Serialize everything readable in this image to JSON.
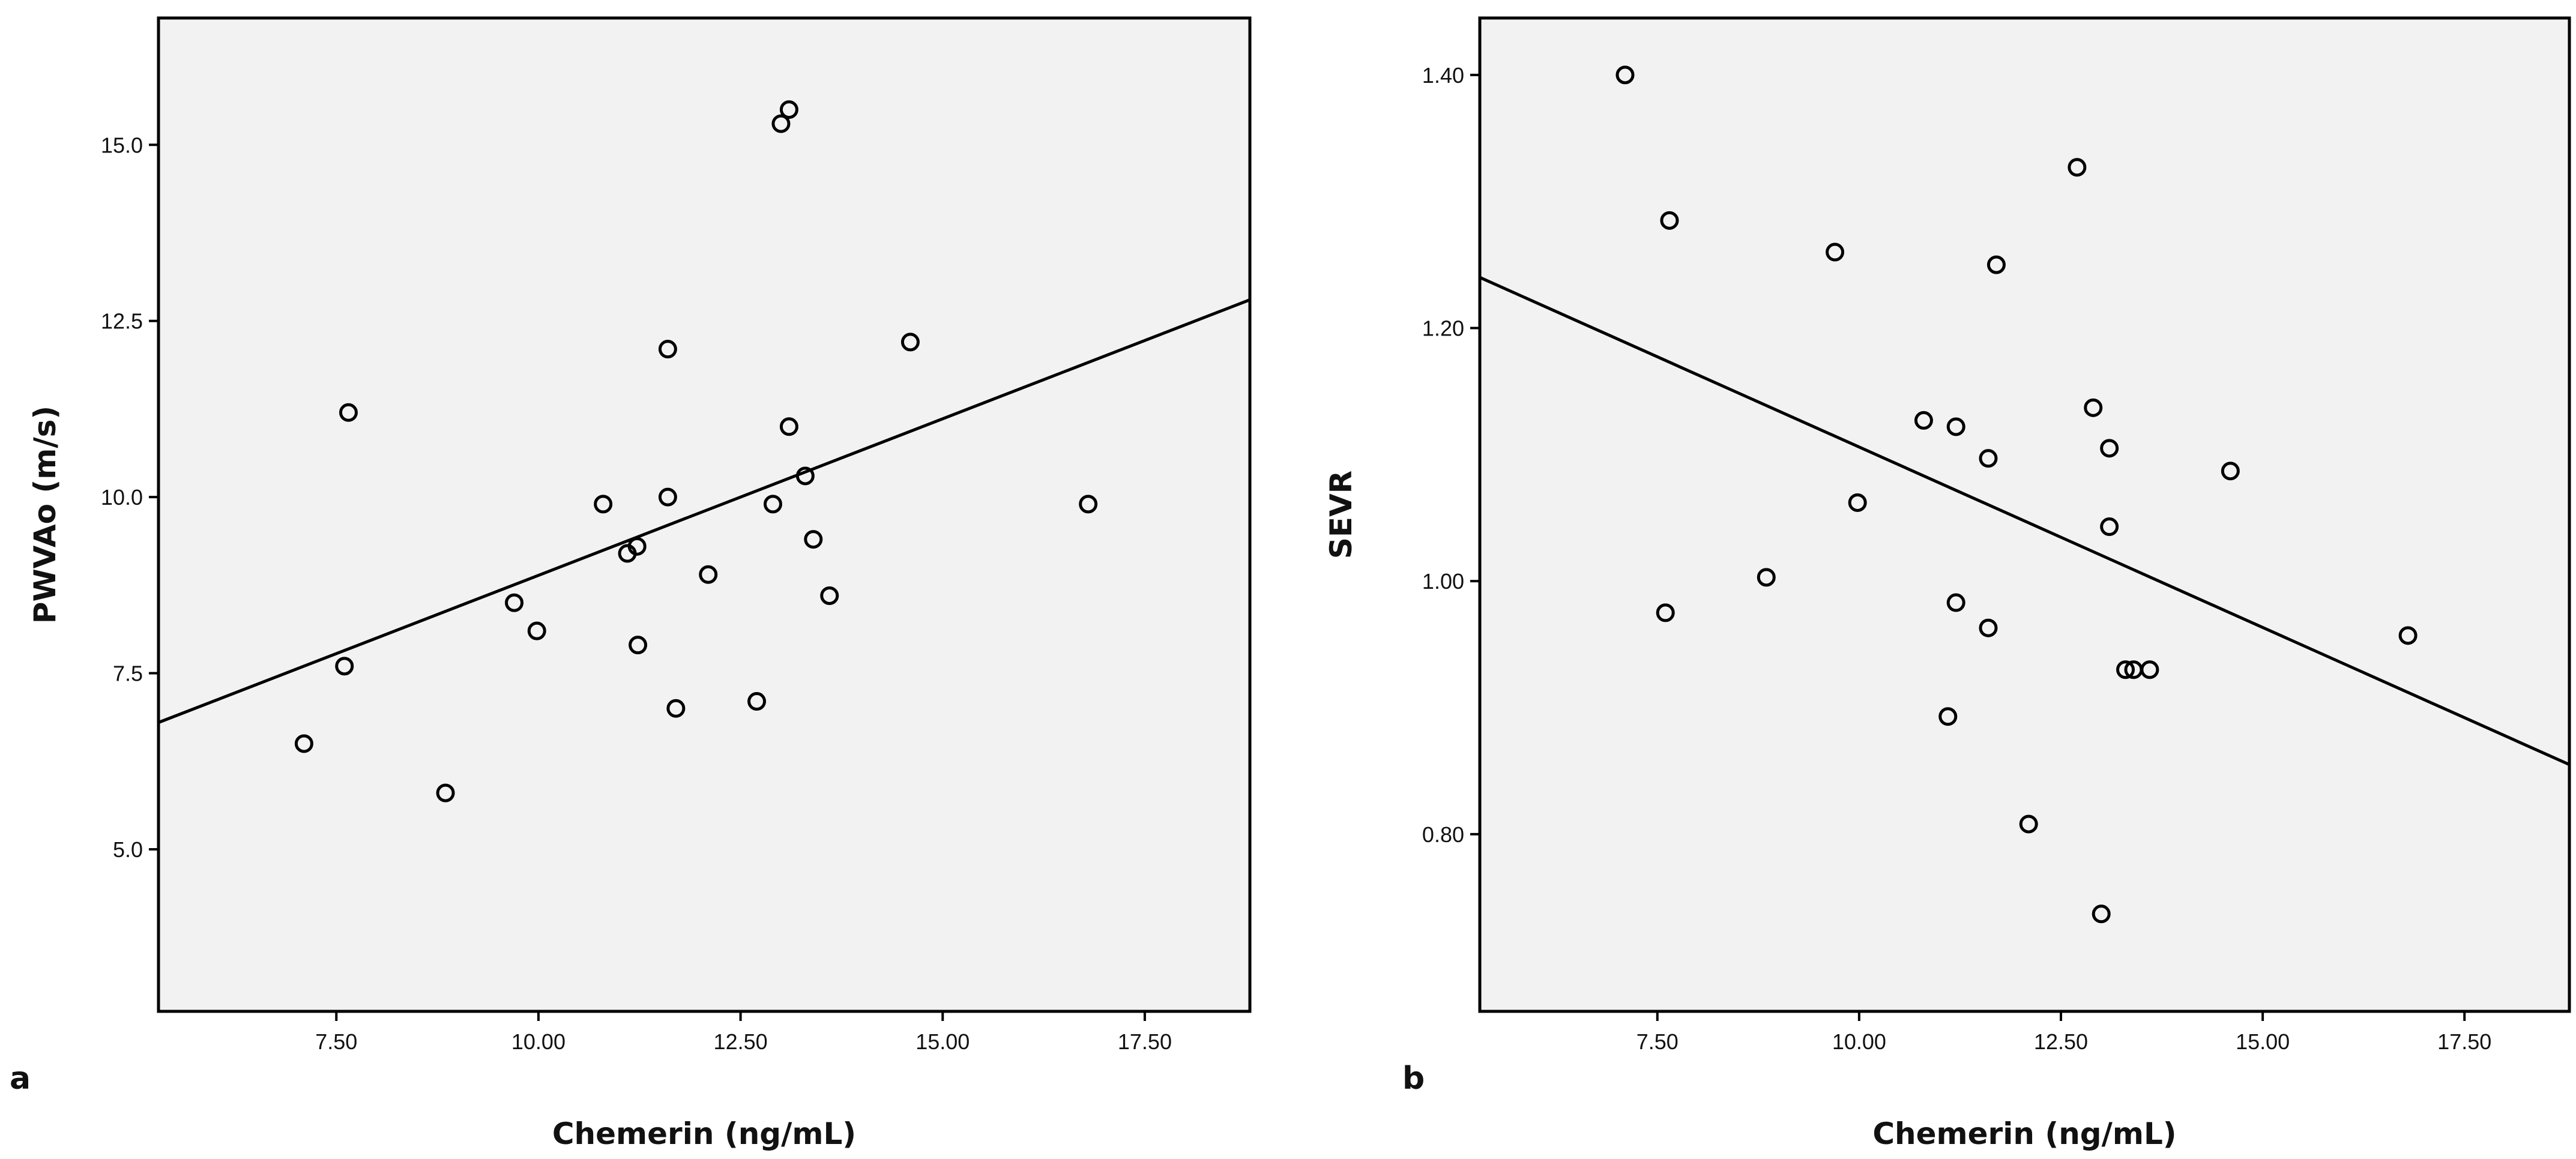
{
  "chart_data": [
    {
      "type": "scatter",
      "panel_label": "a",
      "xlabel": "Chemerin (ng/mL)",
      "ylabel": "PWVAo (m/s)",
      "xlim": [
        5.3,
        18.8
      ],
      "ylim": [
        2.7,
        16.8
      ],
      "xticks": [
        7.5,
        10,
        12.5,
        15,
        17.5
      ],
      "xtick_labels": [
        "7.50",
        "10.00",
        "12.50",
        "15.00",
        "17.50"
      ],
      "yticks": [
        5,
        7.5,
        10,
        12.5,
        15
      ],
      "ytick_labels": [
        "5.0",
        "7.5",
        "10.0",
        "12.5",
        "15.0"
      ],
      "grid": false,
      "fit_line": {
        "x": [
          5.3,
          18.8
        ],
        "y": [
          6.8,
          12.8
        ]
      },
      "points": [
        {
          "x": 7.1,
          "y": 6.5
        },
        {
          "x": 7.6,
          "y": 7.6
        },
        {
          "x": 7.65,
          "y": 11.2
        },
        {
          "x": 8.85,
          "y": 5.8
        },
        {
          "x": 9.7,
          "y": 8.5
        },
        {
          "x": 9.98,
          "y": 8.1
        },
        {
          "x": 10.8,
          "y": 9.9
        },
        {
          "x": 11.1,
          "y": 9.2
        },
        {
          "x": 11.22,
          "y": 9.3
        },
        {
          "x": 11.23,
          "y": 7.9
        },
        {
          "x": 11.6,
          "y": 10.0
        },
        {
          "x": 11.6,
          "y": 12.1
        },
        {
          "x": 11.7,
          "y": 7.0
        },
        {
          "x": 12.1,
          "y": 8.9
        },
        {
          "x": 12.7,
          "y": 7.1
        },
        {
          "x": 12.9,
          "y": 9.9
        },
        {
          "x": 13.0,
          "y": 15.3
        },
        {
          "x": 13.1,
          "y": 15.5
        },
        {
          "x": 13.1,
          "y": 11.0
        },
        {
          "x": 13.3,
          "y": 10.3
        },
        {
          "x": 13.4,
          "y": 9.4
        },
        {
          "x": 13.6,
          "y": 8.6
        },
        {
          "x": 14.6,
          "y": 12.2
        },
        {
          "x": 16.8,
          "y": 9.9
        }
      ]
    },
    {
      "type": "scatter",
      "panel_label": "b",
      "xlabel": "Chemerin (ng/mL)",
      "ylabel": "SEVR",
      "xlim": [
        5.3,
        18.8
      ],
      "ylim": [
        0.66,
        1.445
      ],
      "xticks": [
        7.5,
        10,
        12.5,
        15,
        17.5
      ],
      "xtick_labels": [
        "7.50",
        "10.00",
        "12.50",
        "15.00",
        "17.50"
      ],
      "yticks": [
        0.8,
        1.0,
        1.2,
        1.4
      ],
      "ytick_labels": [
        "0.80",
        "1.00",
        "1.20",
        "1.40"
      ],
      "grid": false,
      "fit_line": {
        "x": [
          5.3,
          18.8
        ],
        "y": [
          1.24,
          0.855
        ]
      },
      "points": [
        {
          "x": 7.1,
          "y": 1.4
        },
        {
          "x": 7.6,
          "y": 0.975
        },
        {
          "x": 7.65,
          "y": 1.285
        },
        {
          "x": 8.85,
          "y": 1.003
        },
        {
          "x": 9.7,
          "y": 1.26
        },
        {
          "x": 9.98,
          "y": 1.062
        },
        {
          "x": 10.8,
          "y": 1.127
        },
        {
          "x": 11.1,
          "y": 0.893
        },
        {
          "x": 11.2,
          "y": 1.122
        },
        {
          "x": 11.2,
          "y": 0.983
        },
        {
          "x": 11.6,
          "y": 1.097
        },
        {
          "x": 11.6,
          "y": 0.963
        },
        {
          "x": 11.7,
          "y": 1.25
        },
        {
          "x": 12.1,
          "y": 0.808
        },
        {
          "x": 12.7,
          "y": 1.327
        },
        {
          "x": 12.9,
          "y": 1.137
        },
        {
          "x": 13.0,
          "y": 0.737
        },
        {
          "x": 13.1,
          "y": 1.105
        },
        {
          "x": 13.1,
          "y": 1.043
        },
        {
          "x": 13.3,
          "y": 0.93
        },
        {
          "x": 13.4,
          "y": 0.93
        },
        {
          "x": 13.6,
          "y": 0.93
        },
        {
          "x": 14.6,
          "y": 1.087
        },
        {
          "x": 16.8,
          "y": 0.957
        }
      ]
    }
  ]
}
